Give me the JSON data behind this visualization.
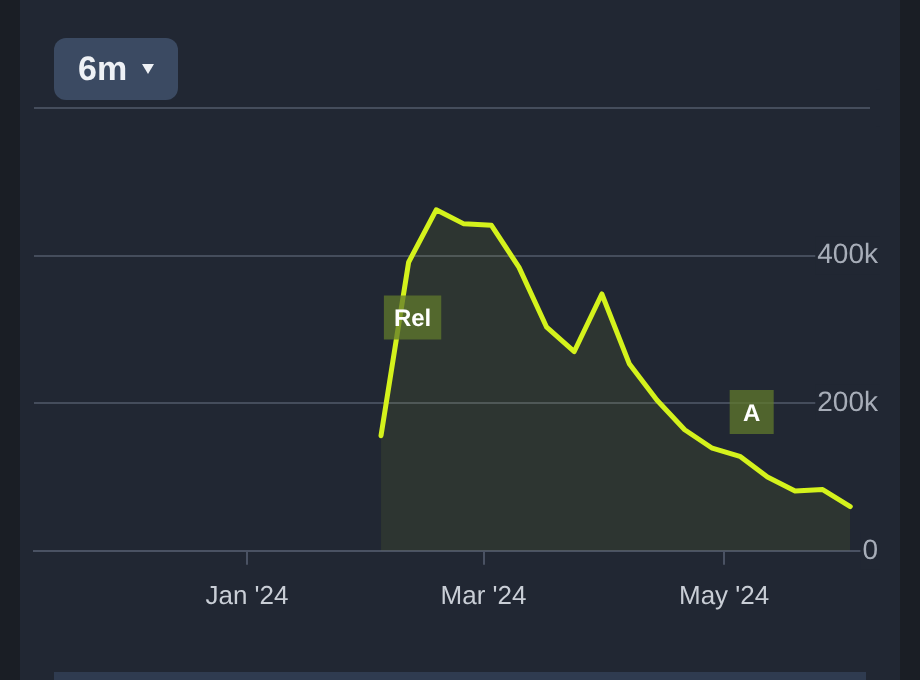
{
  "chart_data": {
    "type": "area",
    "x": [
      "2024-02-04",
      "2024-02-11",
      "2024-02-18",
      "2024-02-25",
      "2024-03-03",
      "2024-03-10",
      "2024-03-17",
      "2024-03-24",
      "2024-03-31",
      "2024-04-07",
      "2024-04-14",
      "2024-04-21",
      "2024-04-28",
      "2024-05-05",
      "2024-05-12",
      "2024-05-19",
      "2024-05-26",
      "2024-06-02"
    ],
    "series": [
      {
        "color": "#d4f21c",
        "values": [
          156000,
          391000,
          462000,
          443000,
          441000,
          384000,
          303000,
          270000,
          348000,
          253000,
          204000,
          164000,
          139000,
          128000,
          100000,
          81000,
          83000,
          60000
        ]
      }
    ],
    "xlim": [
      "2023-11-08",
      "2024-06-07"
    ],
    "xticks": [
      {
        "value": "2024-01-01",
        "label": "Jan '24"
      },
      {
        "value": "2024-03-01",
        "label": "Mar '24"
      },
      {
        "value": "2024-05-01",
        "label": "May '24"
      }
    ],
    "ylim": [
      0,
      600000
    ],
    "yticks": [
      {
        "value": 0,
        "label": "0"
      },
      {
        "value": 200000,
        "label": "200k"
      },
      {
        "value": 400000,
        "label": "400k"
      },
      {
        "value": 600000,
        "label": null
      }
    ],
    "grid": "y",
    "marker": "none",
    "line_style": "solid",
    "annotations": [
      "6m",
      {
        "text": "Rel",
        "x": "2024-02-12",
        "y": 316000
      },
      {
        "text": "A",
        "x": "2024-05-08",
        "y": 188000
      }
    ]
  }
}
